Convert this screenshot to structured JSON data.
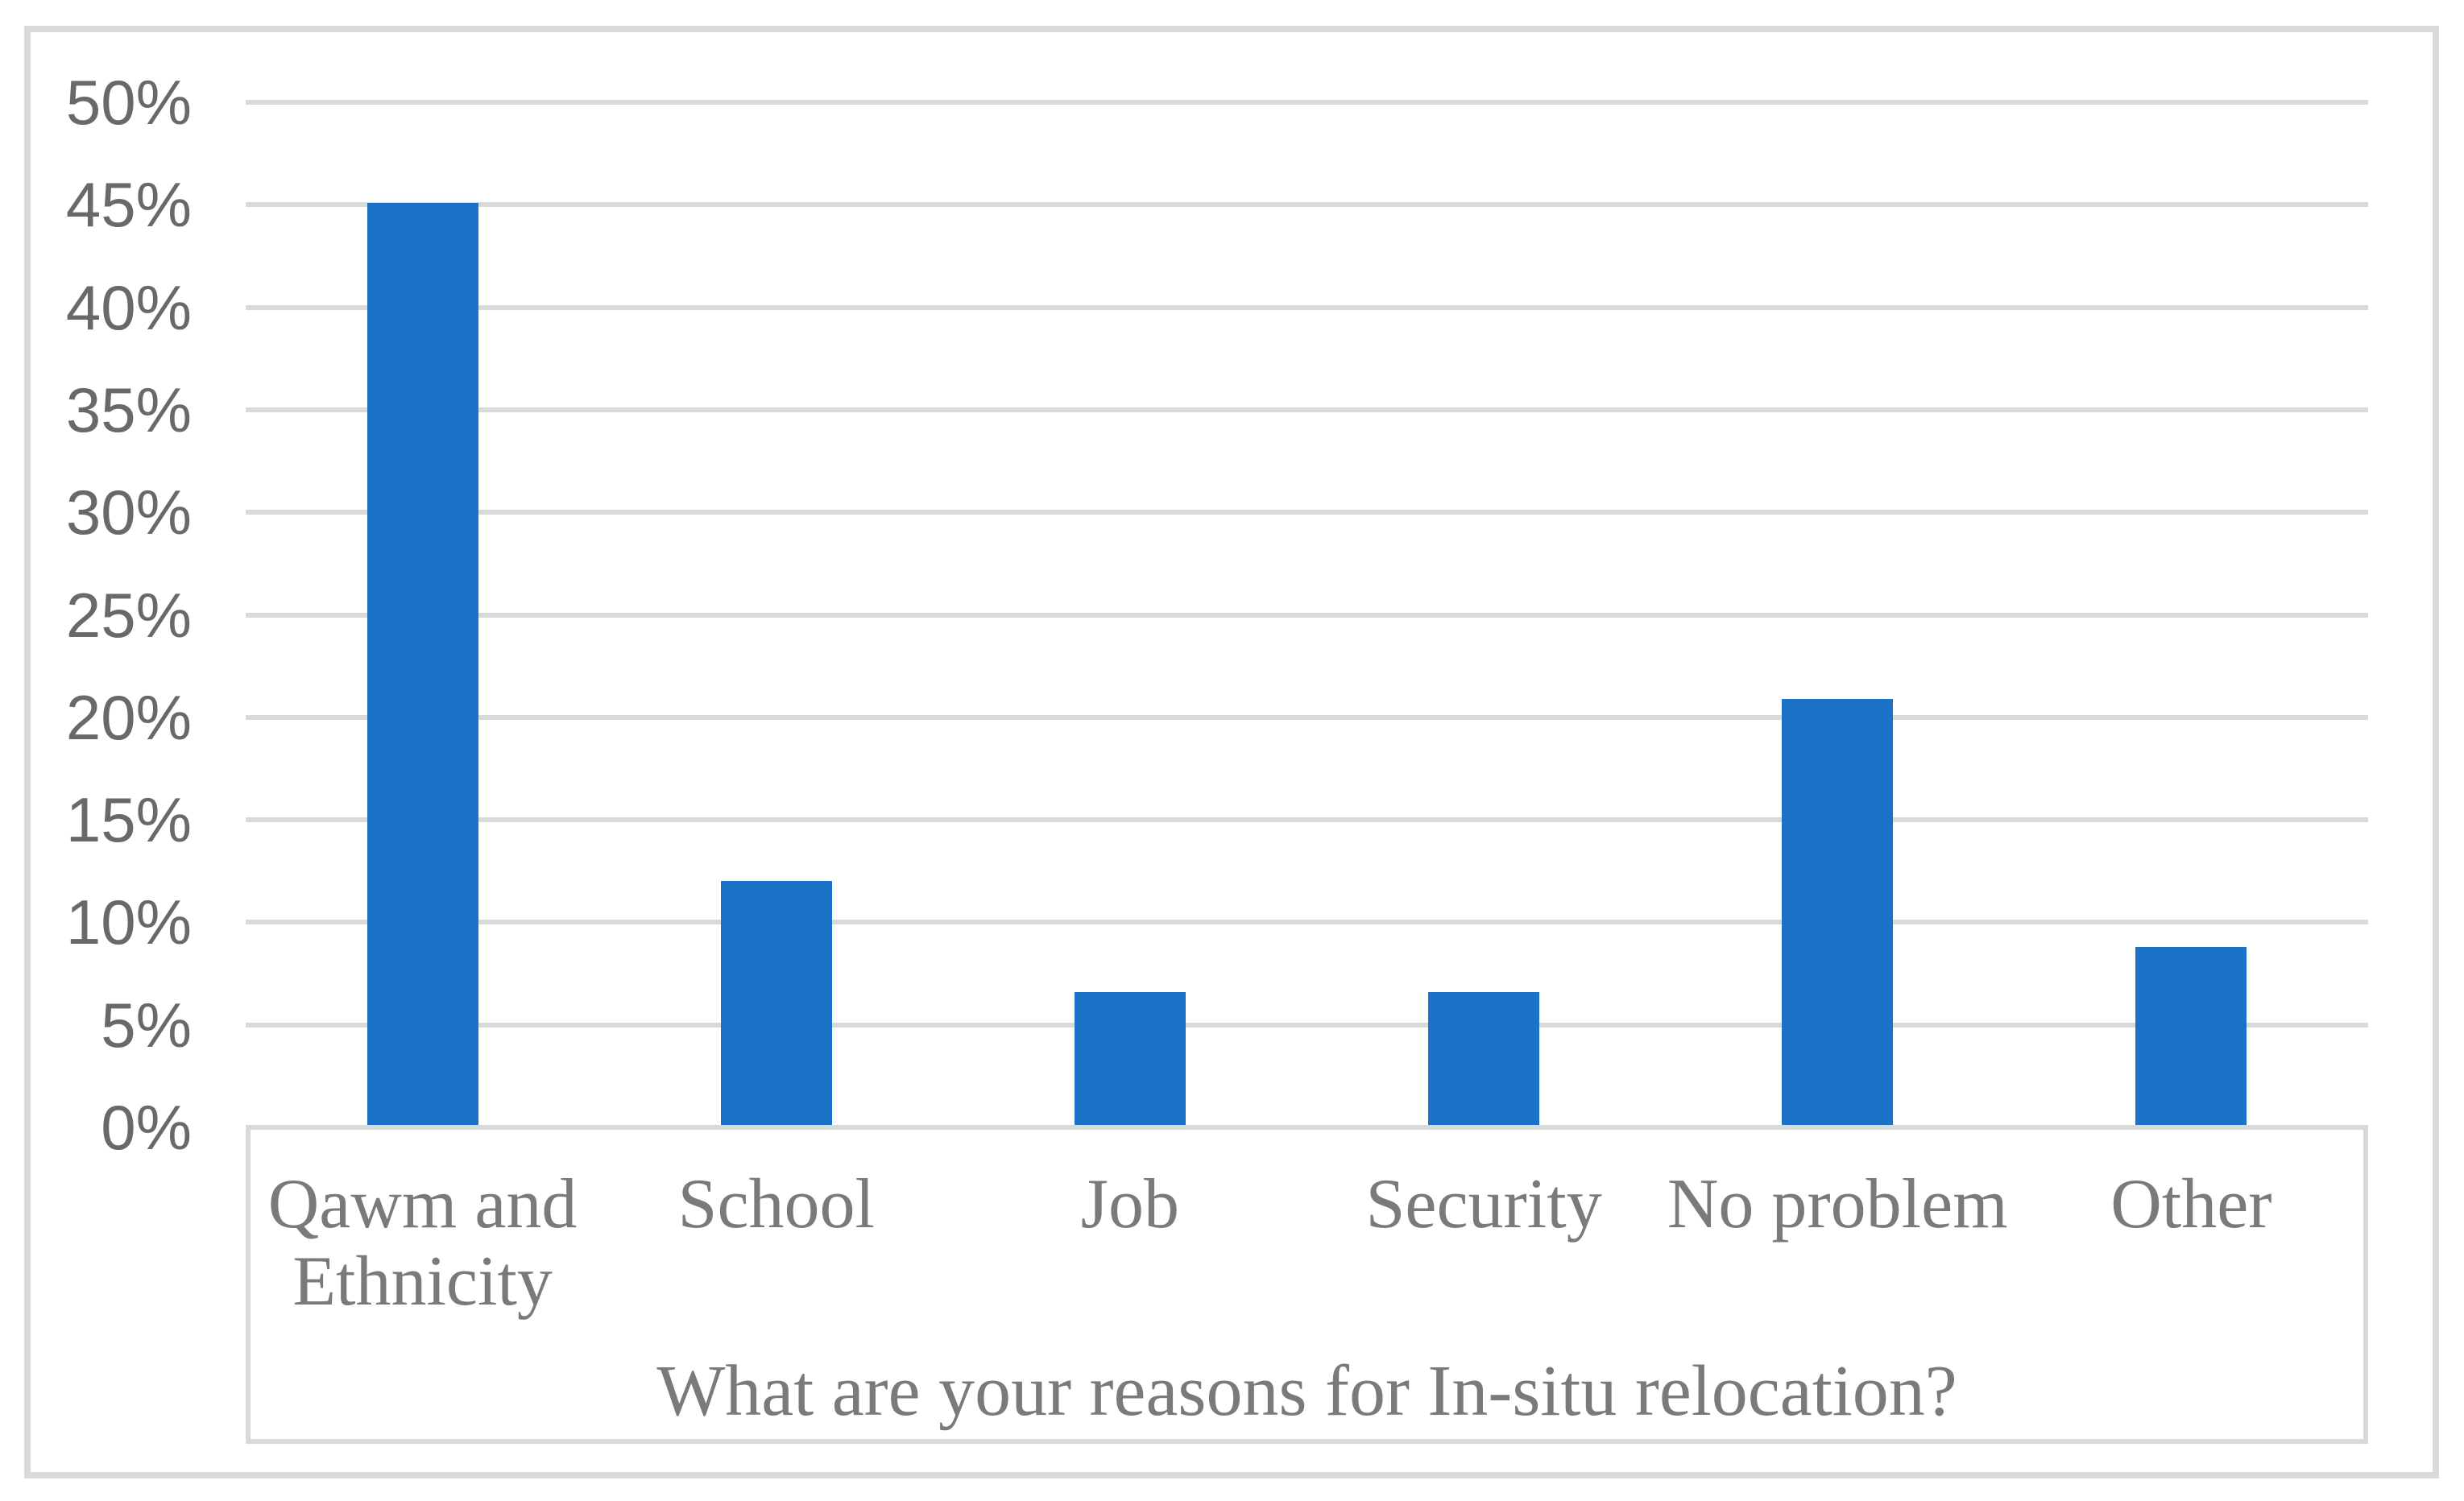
{
  "chart_data": {
    "type": "bar",
    "categories": [
      "Qawm and Ethnicity",
      "School",
      "Job",
      "Security",
      "No problem",
      "Other"
    ],
    "values": [
      45.1,
      12,
      6.6,
      6.6,
      20.9,
      8.8
    ],
    "title": "",
    "xlabel": "What are your reasons for In-situ relocation?",
    "ylabel": "",
    "ylim": [
      0,
      50
    ],
    "ytick_step": 5,
    "ytick_labels": [
      "0%",
      "5%",
      "10%",
      "15%",
      "20%",
      "25%",
      "30%",
      "35%",
      "40%",
      "45%",
      "50%"
    ],
    "grid": true,
    "legend": false,
    "value_unit": "percent"
  },
  "colors": {
    "bar": "#1B73C8",
    "gridline": "#D9D9D9",
    "frame_border": "#D9D9D9",
    "axis_line": "#D9D9D9",
    "tick_label_text": "#696969",
    "category_label_text": "#7A7A7A",
    "axis_title_text": "#7A7A7A",
    "background": "#FFFFFF"
  }
}
